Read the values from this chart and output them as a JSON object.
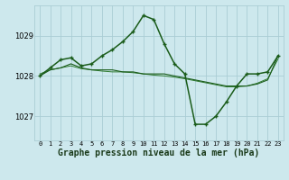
{
  "bg_color": "#cde8ed",
  "grid_color": "#aacdd4",
  "line_color_dark": "#1a5c1a",
  "line_color_med": "#2d7a2d",
  "xlabel": "Graphe pression niveau de la mer (hPa)",
  "xlabel_fontsize": 7.0,
  "yticks": [
    1027,
    1028,
    1029
  ],
  "ylim": [
    1026.4,
    1029.75
  ],
  "xlim": [
    -0.5,
    23.5
  ],
  "series1_y": [
    1028.0,
    1028.2,
    1028.4,
    1028.45,
    1028.25,
    1028.3,
    1028.5,
    1028.65,
    1028.85,
    1029.1,
    1029.5,
    1029.4,
    1028.8,
    1028.3,
    1028.05,
    1026.8,
    1026.8,
    1027.0,
    1027.35,
    1027.75,
    1028.05,
    1028.05,
    1028.1,
    1028.5
  ],
  "series2_y": [
    1028.0,
    1028.15,
    1028.2,
    1028.3,
    1028.2,
    1028.15,
    1028.15,
    1028.15,
    1028.1,
    1028.1,
    1028.05,
    1028.05,
    1028.05,
    1028.0,
    1027.95,
    1027.9,
    1027.85,
    1027.8,
    1027.75,
    1027.75,
    1027.75,
    1027.8,
    1027.9,
    1028.5
  ],
  "series3_y": [
    1028.05,
    1028.15,
    1028.2,
    1028.25,
    1028.18,
    1028.15,
    1028.12,
    1028.1,
    1028.1,
    1028.08,
    1028.05,
    1028.02,
    1028.0,
    1027.97,
    1027.93,
    1027.88,
    1027.83,
    1027.78,
    1027.73,
    1027.73,
    1027.75,
    1027.82,
    1027.93,
    1028.42
  ]
}
